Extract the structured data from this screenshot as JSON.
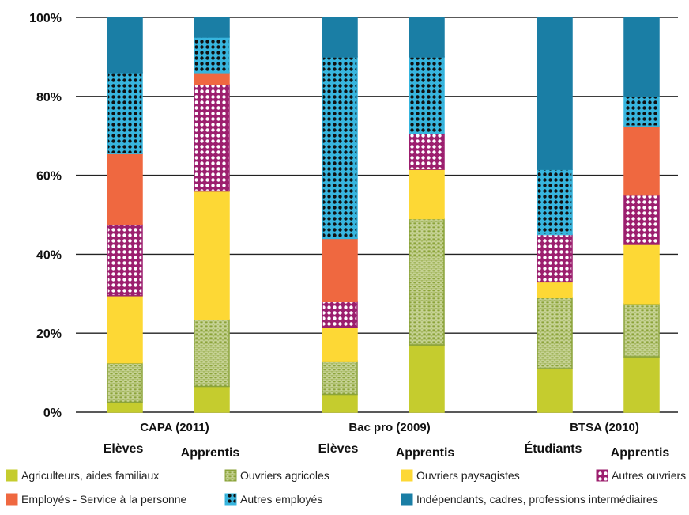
{
  "chart_data": {
    "type": "bar",
    "stacked": true,
    "ylim": [
      0,
      100
    ],
    "yticks": [
      "0%",
      "20%",
      "40%",
      "60%",
      "80%",
      "100%"
    ],
    "grid": true,
    "legend_position": "bottom",
    "groups": [
      {
        "label": "CAPA (2011)",
        "bars": [
          0,
          1
        ]
      },
      {
        "label": "Bac pro (2009)",
        "bars": [
          2,
          3
        ]
      },
      {
        "label": "BTSA (2010)",
        "bars": [
          4,
          5
        ]
      }
    ],
    "categories": [
      "Elèves",
      "Apprentis",
      "Elèves",
      "Apprentis",
      "Étudiants",
      "Apprentis"
    ],
    "series": [
      {
        "name": "Agriculteurs, aides familiaux",
        "color": "#c5cc2e",
        "pattern": "none",
        "values": [
          2.5,
          6.5,
          4.5,
          17,
          11,
          14
        ]
      },
      {
        "name": "Ouvriers agricoles",
        "color": "#8ba33a",
        "pattern": "grid",
        "values": [
          10,
          17,
          8.5,
          32,
          18,
          13.5
        ]
      },
      {
        "name": "Ouvriers paysagistes",
        "color": "#fdd835",
        "pattern": "none",
        "values": [
          17,
          32.5,
          8.5,
          12.5,
          4,
          15
        ]
      },
      {
        "name": "Autres ouvriers",
        "color": "#9c1f6e",
        "pattern": "dots-white",
        "values": [
          18,
          27,
          6.5,
          9,
          12,
          12.5
        ]
      },
      {
        "name": "Employés - Service à la personne",
        "color": "#ef6840",
        "pattern": "none",
        "values": [
          18,
          3,
          16,
          0,
          0,
          17.5
        ]
      },
      {
        "name": "Autres employés",
        "color": "#37b5de",
        "pattern": "dots-black",
        "values": [
          20.5,
          9,
          46,
          19.5,
          16.5,
          7.5
        ]
      },
      {
        "name": "Indépendants, cadres, professions intermédiaires",
        "color": "#1a7ea5",
        "pattern": "none",
        "values": [
          14,
          5,
          10,
          10,
          38.5,
          20
        ]
      }
    ]
  }
}
